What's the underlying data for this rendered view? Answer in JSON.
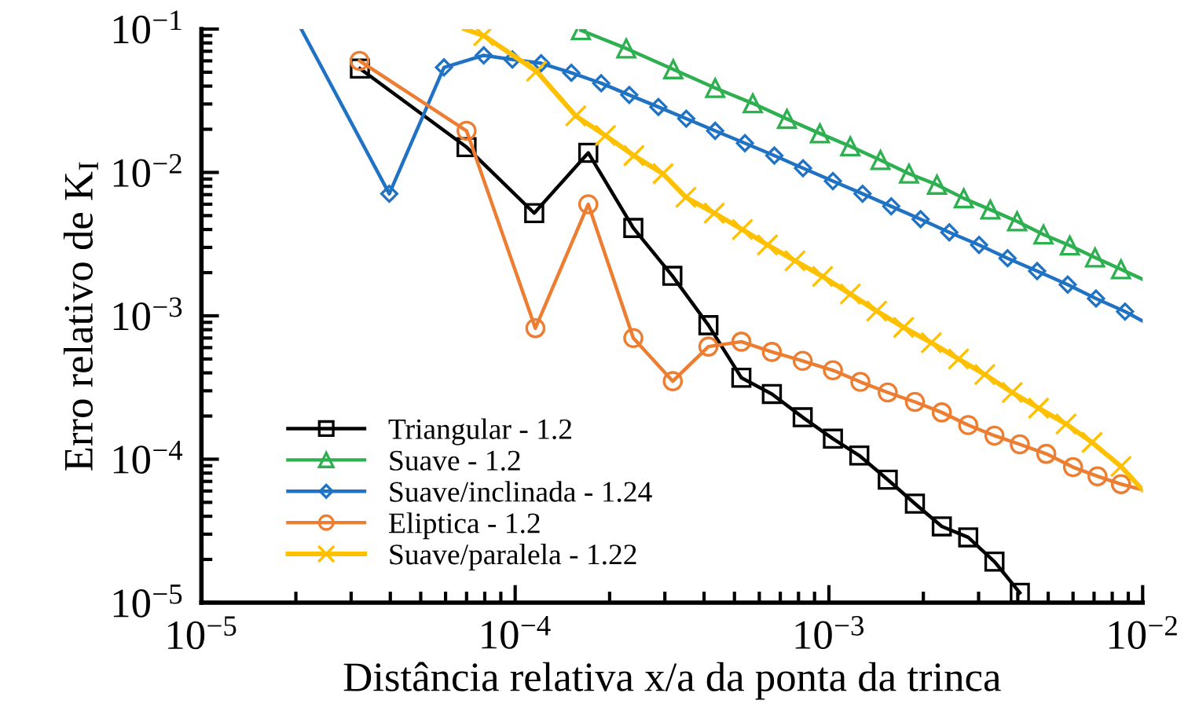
{
  "chart_data": {
    "type": "line",
    "xlabel": "Distância relativa x/a da ponta da trinca",
    "ylabel": "Erro relativo de K$_{I}$",
    "log": "xy",
    "grid": false,
    "legend": "bottom left",
    "line_style": "solid",
    "xlim": [
      1e-05,
      0.01
    ],
    "ylim": [
      1e-05,
      0.1
    ],
    "xticks": [
      {
        "value": 1e-05,
        "label": "10$^{−5}$"
      },
      {
        "value": 0.0001,
        "label": "10$^{−4}$"
      },
      {
        "value": 0.001,
        "label": "10$^{−3}$"
      },
      {
        "value": 0.01,
        "label": "10$^{−2}$"
      }
    ],
    "yticks": [
      {
        "value": 1e-05,
        "label": "10$^{−5}$"
      },
      {
        "value": 0.0001,
        "label": "10$^{−4}$"
      },
      {
        "value": 0.001,
        "label": "10$^{−3}$"
      },
      {
        "value": 0.01,
        "label": "10$^{−2}$"
      },
      {
        "value": 0.1,
        "label": "10$^{−1}$"
      }
    ],
    "series": [
      {
        "name": "Triangular - 1.2",
        "color": "#000000",
        "marker": "square",
        "x": [
          3.2e-05,
          7e-05,
          0.000115,
          0.000171,
          0.000238,
          0.000317,
          0.000413,
          0.000526,
          0.000658,
          0.000825,
          0.00103,
          0.00125,
          0.00154,
          0.00188,
          0.00229,
          0.00278,
          0.00337,
          0.00406
        ],
        "values": [
          0.053,
          0.015,
          0.0052,
          0.0137,
          0.0041,
          0.0019,
          0.00086,
          0.00037,
          0.000285,
          0.000196,
          0.000139,
          0.000106,
          7.2e-05,
          4.9e-05,
          3.4e-05,
          2.85e-05,
          1.93e-05,
          1.17e-05
        ]
      },
      {
        "name": "Suave - 1.2",
        "color": "#2eb050",
        "marker": "triangle",
        "x": [
          0.000162,
          0.000226,
          0.000319,
          0.000434,
          0.000572,
          0.000735,
          0.000936,
          0.00117,
          0.00146,
          0.0018,
          0.00221,
          0.00269,
          0.00327,
          0.00398,
          0.00483,
          0.00586,
          0.00705,
          0.00853,
          0.01
        ],
        "values": [
          0.098,
          0.0732,
          0.0524,
          0.0388,
          0.0303,
          0.0236,
          0.0187,
          0.0152,
          0.0122,
          0.0098,
          0.0082,
          0.0066,
          0.0055,
          0.00456,
          0.00369,
          0.00309,
          0.00255,
          0.00211,
          0.0018
        ]
      },
      {
        "name": "Suave/inclinada - 1.24",
        "color": "#1f72c4",
        "marker": "diamond",
        "x": [
          2.08e-05,
          3.97e-05,
          5.93e-05,
          7.94e-05,
          9.8e-05,
          0.000121,
          0.000151,
          0.000188,
          0.000231,
          0.000286,
          0.000351,
          0.000434,
          0.00054,
          0.00067,
          0.000827,
          0.00103,
          0.00128,
          0.00158,
          0.00196,
          0.00242,
          0.00301,
          0.00371,
          0.00461,
          0.00577,
          0.0071,
          0.00879,
          0.01
        ],
        "values": [
          0.1,
          0.0071,
          0.054,
          0.0655,
          0.0613,
          0.0577,
          0.0495,
          0.0419,
          0.0347,
          0.0286,
          0.0237,
          0.0195,
          0.016,
          0.0131,
          0.0107,
          0.0087,
          0.0071,
          0.0058,
          0.00472,
          0.00382,
          0.00312,
          0.00252,
          0.00205,
          0.00165,
          0.00132,
          0.00107,
          0.00092
        ]
      },
      {
        "name": "Eliptica - 1.2",
        "color": "#ed7d31",
        "marker": "circle",
        "x": [
          3.19e-05,
          7e-05,
          0.000116,
          0.000171,
          0.000238,
          0.000318,
          0.000413,
          0.000526,
          0.000658,
          0.000825,
          0.00103,
          0.00126,
          0.00154,
          0.00188,
          0.00229,
          0.00278,
          0.00337,
          0.00406,
          0.00493,
          0.006,
          0.00718,
          0.00853,
          0.01
        ],
        "values": [
          0.06,
          0.0195,
          0.00082,
          0.006,
          0.0007,
          0.00035,
          0.00061,
          0.00066,
          0.00056,
          0.000485,
          0.000417,
          0.000346,
          0.000292,
          0.000251,
          0.000212,
          0.000173,
          0.000146,
          0.000127,
          0.000109,
          8.8e-05,
          7.6e-05,
          6.7e-05,
          6.1e-05
        ]
      },
      {
        "name": "Suave/paralela - 1.22",
        "color": "#ffc000",
        "marker": "cross",
        "x": [
          6.9e-05,
          7.94e-05,
          0.000117,
          0.000156,
          0.000194,
          0.000239,
          0.000296,
          0.00035,
          0.000431,
          0.00053,
          0.000637,
          0.00078,
          0.000955,
          0.00117,
          0.00142,
          0.00173,
          0.00212,
          0.00259,
          0.00314,
          0.00384,
          0.00466,
          0.0057,
          0.0069,
          0.00853,
          0.01
        ],
        "values": [
          0.1,
          0.09,
          0.0508,
          0.0248,
          0.0181,
          0.0131,
          0.0098,
          0.0067,
          0.0052,
          0.004,
          0.00312,
          0.00242,
          0.00188,
          0.00142,
          0.00108,
          0.00083,
          0.00065,
          0.0005,
          0.00039,
          0.000292,
          0.000227,
          0.000176,
          0.000131,
          8.9e-05,
          6.1e-05
        ]
      }
    ]
  }
}
